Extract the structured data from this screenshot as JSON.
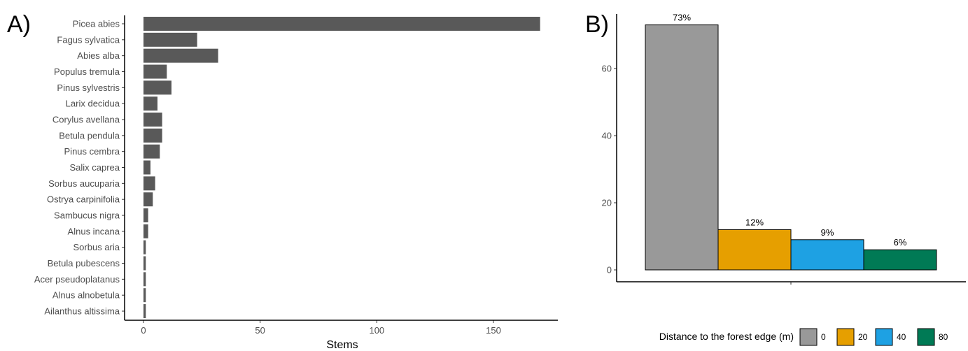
{
  "chart_data": [
    {
      "panel": "A)",
      "type": "bar",
      "orientation": "horizontal",
      "categories": [
        "Picea abies",
        "Fagus sylvatica",
        "Abies alba",
        "Populus tremula",
        "Pinus sylvestris",
        "Larix decidua",
        "Corylus avellana",
        "Betula pendula",
        "Pinus cembra",
        "Salix caprea",
        "Sorbus aucuparia",
        "Ostrya carpinifolia",
        "Sambucus nigra",
        "Alnus incana",
        "Sorbus aria",
        "Betula pubescens",
        "Acer pseudoplatanus",
        "Alnus alnobetula",
        "Ailanthus altissima"
      ],
      "values": [
        170,
        23,
        32,
        10,
        12,
        6,
        8,
        8,
        7,
        3,
        5,
        4,
        2,
        2,
        1,
        1,
        1,
        1,
        1
      ],
      "xlabel": "Stems",
      "ylabel": "",
      "xlim": [
        0,
        178
      ],
      "xticks": [
        0,
        50,
        100,
        150
      ],
      "grid": false,
      "bar_color": "#595959"
    },
    {
      "panel": "B)",
      "type": "bar",
      "categories": [
        "0",
        "20",
        "40",
        "80"
      ],
      "values": [
        73,
        12,
        9,
        6
      ],
      "data_labels": [
        "73%",
        "12%",
        "9%",
        "6%"
      ],
      "xlabel": "",
      "ylabel": "",
      "ylim": [
        -3.5,
        77
      ],
      "yticks": [
        0,
        20,
        40,
        60
      ],
      "grid": false,
      "colors": [
        "#999999",
        "#E69F00",
        "#1EA1E3",
        "#007A55"
      ],
      "legend": {
        "title": "Distance to the forest edge (m)",
        "position": "bottom",
        "entries": [
          "0",
          "20",
          "40",
          "80"
        ]
      }
    }
  ]
}
